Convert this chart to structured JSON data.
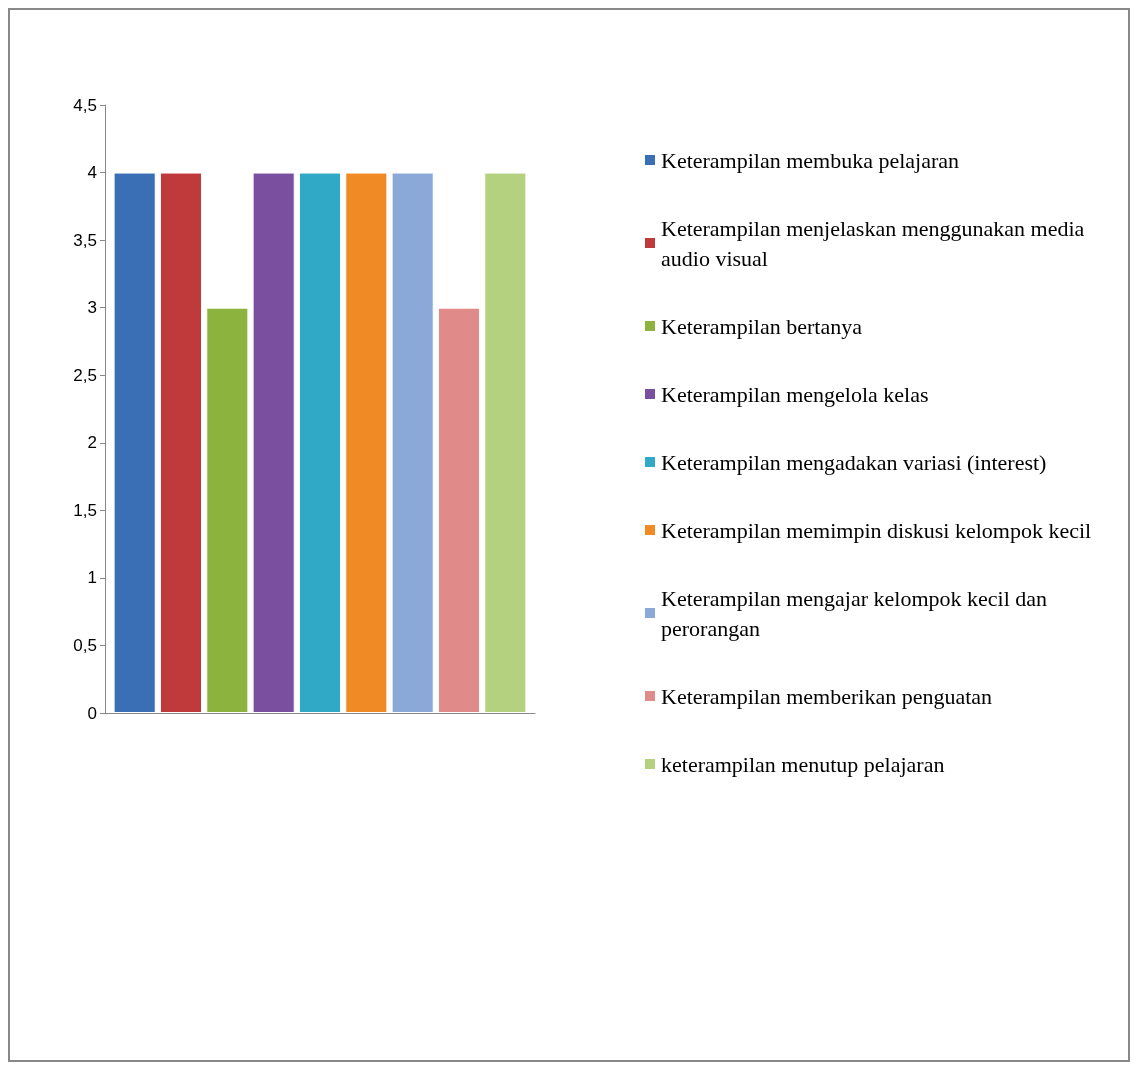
{
  "chart_data": {
    "type": "bar",
    "categories": [
      null
    ],
    "series": [
      {
        "name": "Keterampilan membuka pelajaran",
        "color": "#3a6fb5",
        "values": [
          4
        ]
      },
      {
        "name": "Keterampilan menjelaskan menggunakan media audio visual",
        "color": "#c0393b",
        "values": [
          4
        ]
      },
      {
        "name": "Keterampilan bertanya",
        "color": "#8db33f",
        "values": [
          3
        ]
      },
      {
        "name": "Keterampilan mengelola kelas",
        "color": "#7a4fa0",
        "values": [
          4
        ]
      },
      {
        "name": "Keterampilan mengadakan variasi (interest)",
        "color": "#2fa9c6",
        "values": [
          4
        ]
      },
      {
        "name": "Keterampilan memimpin diskusi kelompok kecil",
        "color": "#f08a24",
        "values": [
          4
        ]
      },
      {
        "name": "Keterampilan mengajar kelompok kecil dan perorangan",
        "color": "#8ba9d8",
        "values": [
          4
        ]
      },
      {
        "name": "Keterampilan memberikan penguatan",
        "color": "#e08a8a",
        "values": [
          3
        ]
      },
      {
        "name": "keterampilan menutup pelajaran",
        "color": "#b4d17f",
        "values": [
          4
        ]
      }
    ],
    "ylim": [
      0,
      4.5
    ],
    "yticks": [
      0,
      {
        "value": 0.5,
        "label": "0,5"
      },
      1,
      {
        "value": 1.5,
        "label": "1,5"
      },
      2,
      {
        "value": 2.5,
        "label": "2,5"
      },
      3,
      {
        "value": 3.5,
        "label": "3,5"
      },
      4,
      {
        "value": 4.5,
        "label": "4,5"
      }
    ],
    "grid": false,
    "legend": "right"
  }
}
